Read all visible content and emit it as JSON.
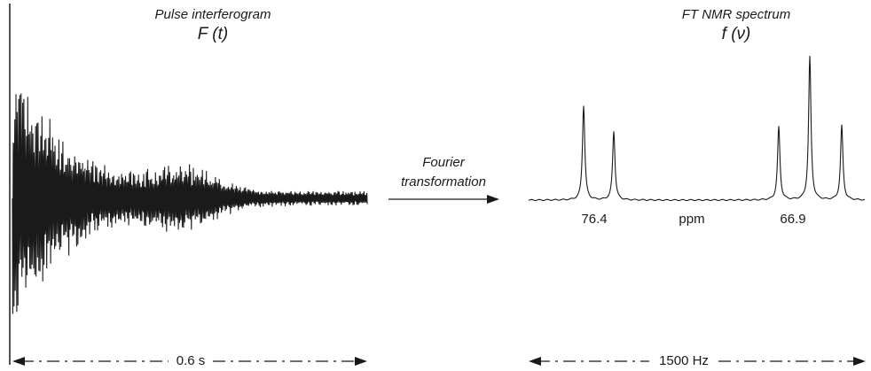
{
  "left_panel": {
    "title": "Pulse interferogram",
    "symbol": "F (t)",
    "time_span_label": "0.6 s"
  },
  "arrow": {
    "line1": "Fourier",
    "line2": "transformation"
  },
  "right_panel": {
    "title": "FT NMR spectrum",
    "symbol": "f (ν)",
    "ppm_left": "76.4",
    "ppm_unit": "ppm",
    "ppm_right": "66.9",
    "frequency_span_label": "1500 Hz"
  },
  "spectrum": {
    "peak_count_left_group": 2,
    "peak_count_right_group": 3,
    "peak_relative_heights": [
      0.66,
      0.48,
      0.51,
      1.0,
      0.52
    ]
  },
  "colors": {
    "ink": "#1a1a1a",
    "background": "#ffffff"
  }
}
